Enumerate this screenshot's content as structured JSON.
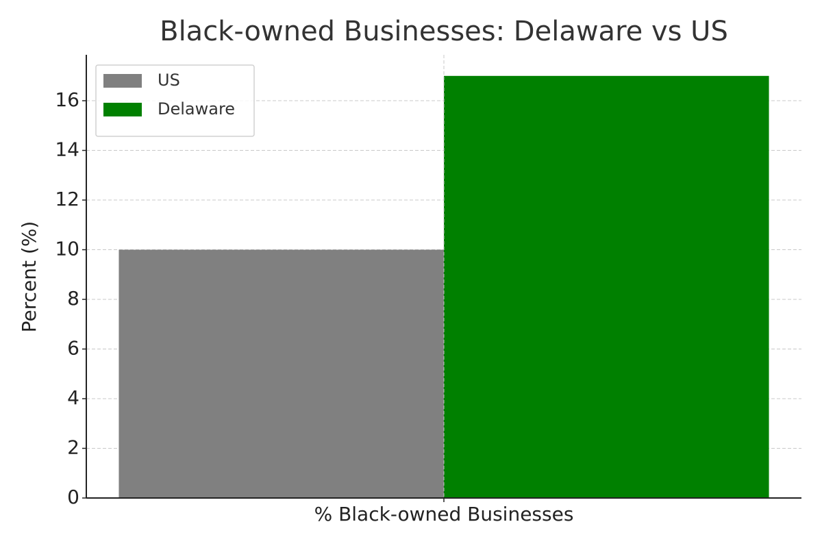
{
  "chart_data": {
    "type": "bar",
    "title": "Black-owned Businesses: Delaware vs US",
    "ylabel": "Percent (%)",
    "categories": [
      "% Black-owned Businesses"
    ],
    "series": [
      {
        "name": "US",
        "color": "#808080",
        "values": [
          10
        ]
      },
      {
        "name": "Delaware",
        "color": "#008000",
        "values": [
          17
        ]
      }
    ],
    "ylim": [
      0,
      17.85
    ],
    "yticks": [
      0,
      2,
      4,
      6,
      8,
      10,
      12,
      14,
      16
    ],
    "grid": true,
    "legend": "upper-left"
  }
}
